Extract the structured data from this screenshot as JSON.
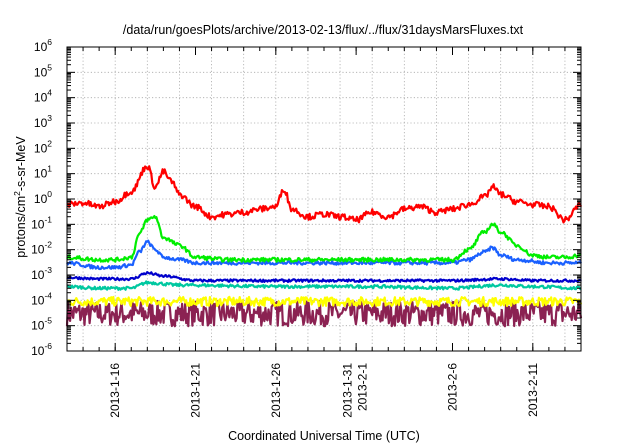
{
  "chart_data": {
    "type": "line",
    "title": "/data/run/goesPlots/archive/2013-02-13/flux/../flux/31daysMarsFluxes.txt",
    "xlabel": "Coordinated Universal Time (UTC)",
    "ylabel": {
      "prefix": "protons/cm",
      "superscript": "2",
      "suffix": "-s-sr-MeV"
    },
    "yscale": "log",
    "ylim": [
      1e-06,
      1000000.0
    ],
    "xlim": [
      "2013-01-13",
      "2013-02-14"
    ],
    "grid": true,
    "legend": "none",
    "y_ticks": [
      {
        "mantissa": "10",
        "exp": "-6",
        "value": 1e-06
      },
      {
        "mantissa": "10",
        "exp": "-5",
        "value": 1e-05
      },
      {
        "mantissa": "10",
        "exp": "-4",
        "value": 0.0001
      },
      {
        "mantissa": "10",
        "exp": "-3",
        "value": 0.001
      },
      {
        "mantissa": "10",
        "exp": "-2",
        "value": 0.01
      },
      {
        "mantissa": "10",
        "exp": "-1",
        "value": 0.1
      },
      {
        "mantissa": "10",
        "exp": "0",
        "value": 1
      },
      {
        "mantissa": "10",
        "exp": "1",
        "value": 10
      },
      {
        "mantissa": "10",
        "exp": "2",
        "value": 100
      },
      {
        "mantissa": "10",
        "exp": "3",
        "value": 1000
      },
      {
        "mantissa": "10",
        "exp": "4",
        "value": 10000
      },
      {
        "mantissa": "10",
        "exp": "5",
        "value": 100000
      },
      {
        "mantissa": "10",
        "exp": "6",
        "value": 1000000
      }
    ],
    "x_ticks": [
      {
        "date": "2013-01-16",
        "lines": [
          "2013-1-16"
        ]
      },
      {
        "date": "2013-01-21",
        "lines": [
          "2013-1-21"
        ]
      },
      {
        "date": "2013-01-26",
        "lines": [
          "2013-1-26"
        ]
      },
      {
        "date": "2013-01-31",
        "lines": [
          "2013-1-31",
          "2013-2-1"
        ]
      },
      {
        "date": "2013-02-06",
        "lines": [
          "2013-2-6"
        ]
      },
      {
        "date": "2013-02-11",
        "lines": [
          "2013-2-11"
        ]
      }
    ],
    "x_minor_grid": [
      "2013-01-14",
      "2013-01-16",
      "2013-01-18",
      "2013-01-20",
      "2013-01-22",
      "2013-01-24",
      "2013-01-26",
      "2013-01-28",
      "2013-01-30",
      "2013-02-01",
      "2013-02-03",
      "2013-02-05",
      "2013-02-07",
      "2013-02-09",
      "2013-02-11",
      "2013-02-13"
    ],
    "series": [
      {
        "color": "#ff0000",
        "noise": 0.12,
        "x": [
          "2013-01-13",
          "2013-01-14",
          "2013-01-15",
          "2013-01-16",
          "2013-01-17",
          "2013-01-18",
          "2013-01-18T12",
          "2013-01-19",
          "2013-01-19T12",
          "2013-01-20",
          "2013-01-21",
          "2013-01-22",
          "2013-01-23",
          "2013-01-24",
          "2013-01-25",
          "2013-01-26",
          "2013-01-26T12",
          "2013-01-27",
          "2013-01-28",
          "2013-01-29",
          "2013-01-30",
          "2013-01-31",
          "2013-02-01",
          "2013-02-02",
          "2013-02-03",
          "2013-02-04",
          "2013-02-05",
          "2013-02-06",
          "2013-02-07",
          "2013-02-08",
          "2013-02-08T12",
          "2013-02-09",
          "2013-02-10",
          "2013-02-11",
          "2013-02-12",
          "2013-02-13",
          "2013-02-14"
        ],
        "y": [
          0.6,
          0.7,
          0.5,
          0.8,
          2,
          20,
          3,
          12,
          5,
          1.5,
          0.5,
          0.2,
          0.25,
          0.3,
          0.4,
          0.5,
          2.5,
          0.4,
          0.2,
          0.25,
          0.2,
          0.15,
          0.3,
          0.2,
          0.4,
          0.5,
          0.3,
          0.4,
          0.6,
          1.2,
          3,
          1.5,
          0.8,
          0.6,
          0.5,
          0.15,
          0.6
        ]
      },
      {
        "color": "#00ee00",
        "noise": 0.08,
        "x": [
          "2013-01-13",
          "2013-01-15",
          "2013-01-16",
          "2013-01-17",
          "2013-01-17T12",
          "2013-01-18",
          "2013-01-18T12",
          "2013-01-19",
          "2013-01-20",
          "2013-01-21",
          "2013-01-23",
          "2013-01-26",
          "2013-01-29",
          "2013-02-01",
          "2013-02-04",
          "2013-02-06",
          "2013-02-07",
          "2013-02-08",
          "2013-02-08T12",
          "2013-02-09",
          "2013-02-10",
          "2013-02-11",
          "2013-02-12",
          "2013-02-13",
          "2013-02-14"
        ],
        "y": [
          0.005,
          0.004,
          0.004,
          0.005,
          0.04,
          0.15,
          0.2,
          0.03,
          0.015,
          0.005,
          0.004,
          0.004,
          0.004,
          0.004,
          0.004,
          0.004,
          0.01,
          0.05,
          0.1,
          0.05,
          0.015,
          0.006,
          0.005,
          0.005,
          0.006
        ]
      },
      {
        "color": "#1a60ff",
        "noise": 0.07,
        "x": [
          "2013-01-13",
          "2013-01-15",
          "2013-01-16",
          "2013-01-17",
          "2013-01-17T12",
          "2013-01-18",
          "2013-01-18T12",
          "2013-01-19",
          "2013-01-20",
          "2013-01-21",
          "2013-01-26",
          "2013-02-01",
          "2013-02-06",
          "2013-02-07",
          "2013-02-08",
          "2013-02-08T12",
          "2013-02-09",
          "2013-02-10",
          "2013-02-12",
          "2013-02-14"
        ],
        "y": [
          0.003,
          0.002,
          0.002,
          0.0025,
          0.008,
          0.02,
          0.01,
          0.005,
          0.004,
          0.003,
          0.003,
          0.003,
          0.003,
          0.004,
          0.008,
          0.012,
          0.006,
          0.004,
          0.003,
          0.003
        ]
      },
      {
        "color": "#0000cc",
        "noise": 0.05,
        "x": [
          "2013-01-13",
          "2013-01-15",
          "2013-01-17",
          "2013-01-18",
          "2013-01-19",
          "2013-01-21",
          "2013-01-26",
          "2013-02-01",
          "2013-02-06",
          "2013-02-09",
          "2013-02-11",
          "2013-02-14"
        ],
        "y": [
          0.0008,
          0.0007,
          0.0007,
          0.0012,
          0.0009,
          0.0006,
          0.0006,
          0.0006,
          0.0006,
          0.0007,
          0.0006,
          0.0006
        ]
      },
      {
        "color": "#00c8a0",
        "noise": 0.06,
        "x": [
          "2013-01-13",
          "2013-01-15",
          "2013-01-17",
          "2013-01-18",
          "2013-01-20",
          "2013-01-26",
          "2013-02-01",
          "2013-02-06",
          "2013-02-09",
          "2013-02-11",
          "2013-02-14"
        ],
        "y": [
          0.00035,
          0.0003,
          0.0003,
          0.0005,
          0.0004,
          0.00035,
          0.00035,
          0.0003,
          0.0004,
          0.00035,
          0.0003
        ]
      },
      {
        "color": "#ffff00",
        "noise": 0.18,
        "x": [
          "2013-01-13",
          "2013-01-20",
          "2013-01-27",
          "2013-02-03",
          "2013-02-10",
          "2013-02-14"
        ],
        "y": [
          9e-05,
          9e-05,
          9e-05,
          9e-05,
          9e-05,
          9e-05
        ]
      },
      {
        "color": "#8b2252",
        "noise": 0.5,
        "x": [
          "2013-01-13",
          "2013-01-20",
          "2013-01-27",
          "2013-02-03",
          "2013-02-10",
          "2013-02-14"
        ],
        "y": [
          3e-05,
          3e-05,
          3e-05,
          3e-05,
          3e-05,
          3e-05
        ]
      }
    ]
  }
}
